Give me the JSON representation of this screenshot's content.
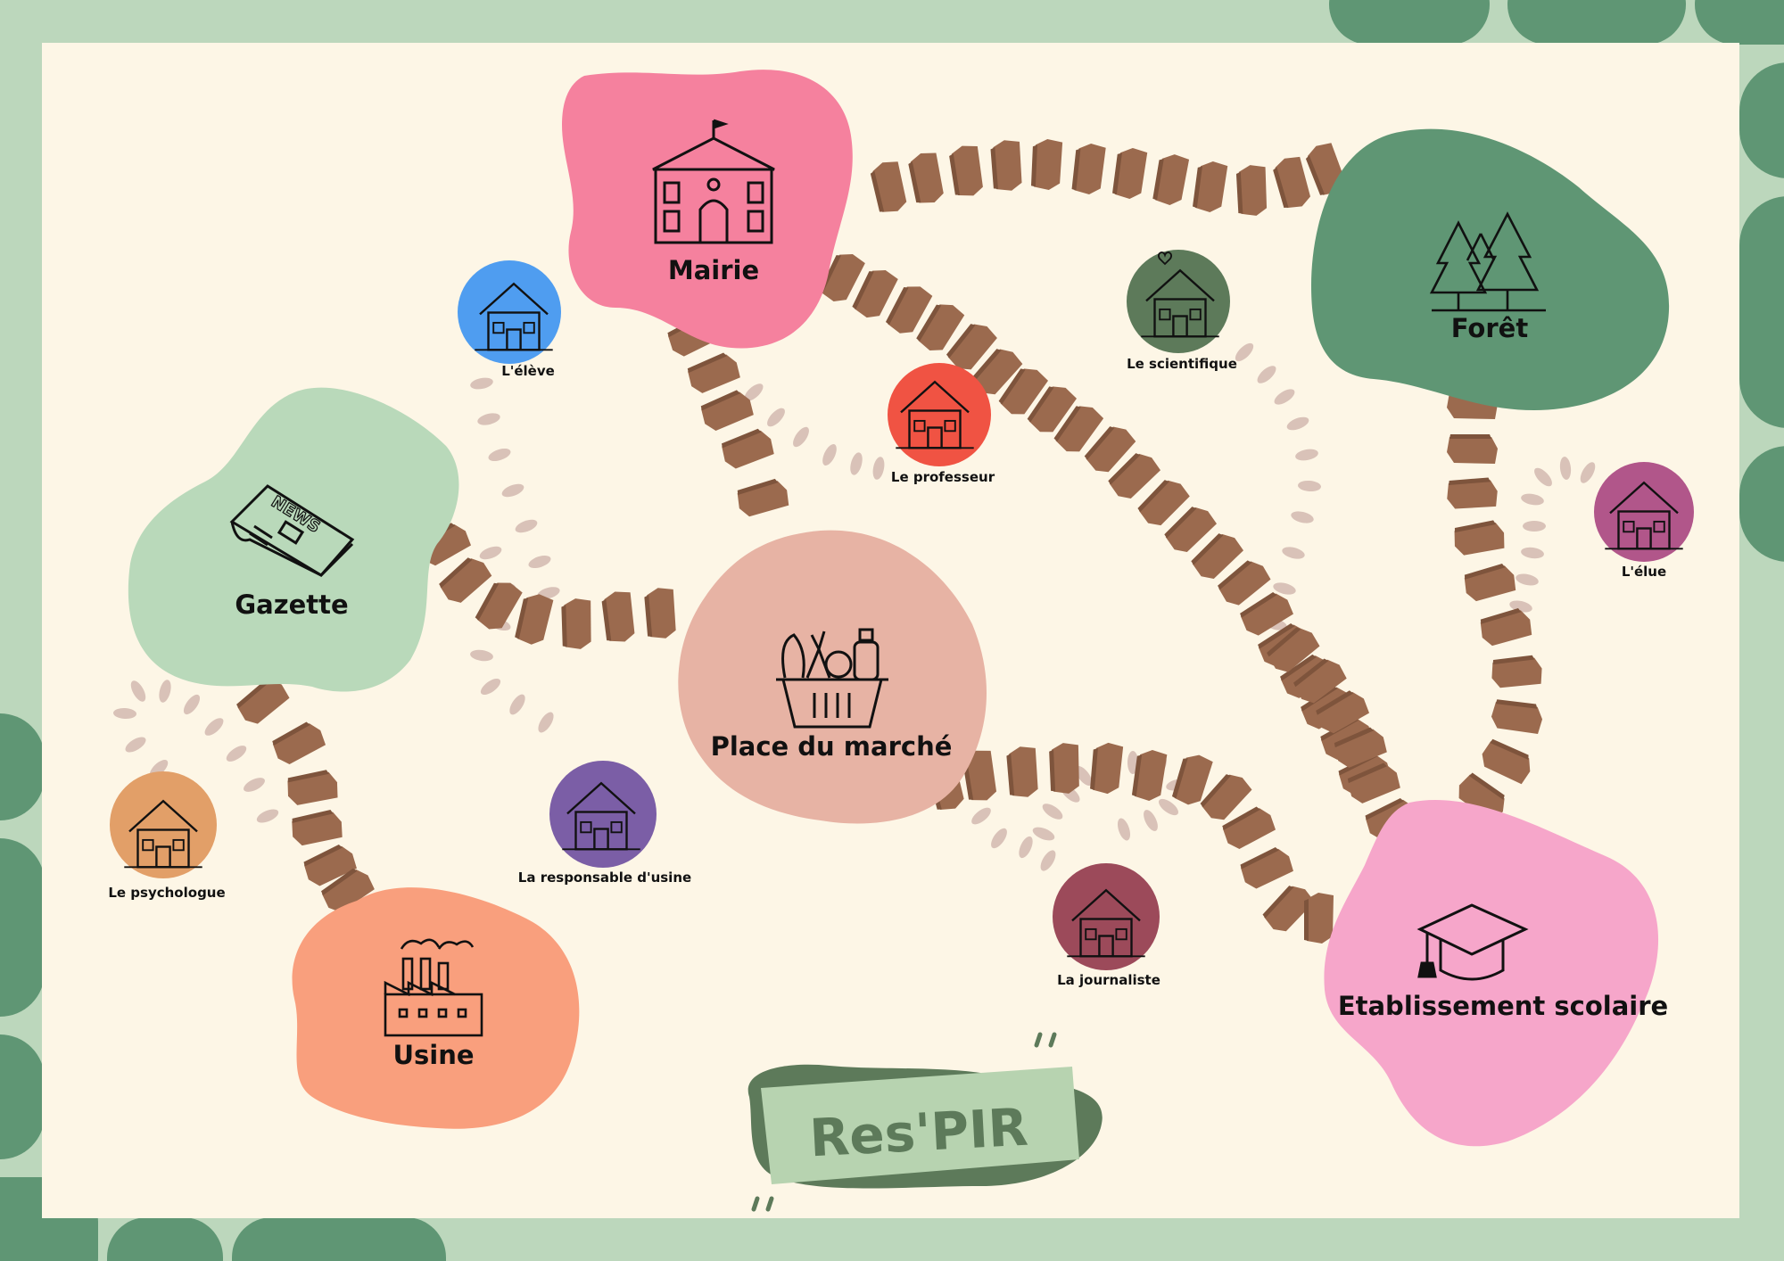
{
  "places": {
    "mairie": "Mairie",
    "gazette": "Gazette",
    "foret": "Forêt",
    "marche": "Place du marché",
    "usine": "Usine",
    "ecole": "Etablissement scolaire"
  },
  "homes": {
    "eleve": "L'élève",
    "scientifique": "Le scientifique",
    "professeur": "Le professeur",
    "elue": "L'élue",
    "psychologue": "Le psychologue",
    "responsable": "La responsable d'usine",
    "journaliste": "La journaliste"
  },
  "title": "Res'PIR",
  "colors": {
    "background": "#bcd7bc",
    "board": "#fdf6e6",
    "path_stone": "#9b6a4e",
    "path_dash": "#d9c2b8",
    "mairie": "#f5819e",
    "gazette": "#b9d9ba",
    "foret": "#5f9674",
    "marche": "#e7b3a4",
    "usine": "#f99f7d",
    "ecole": "#f6a6ca",
    "eleve": "#4f9df0",
    "scientifique": "#5d7a5a",
    "professeur": "#f05343",
    "elue": "#b1568a",
    "psychologue": "#e29f68",
    "responsable": "#7b5ea6",
    "journaliste": "#9c4a5a"
  },
  "icons": {
    "mairie": "town-hall-icon",
    "gazette": "newspaper-icon",
    "foret": "pine-trees-icon",
    "marche": "grocery-basket-icon",
    "usine": "factory-icon",
    "ecole": "graduation-cap-icon",
    "homes": "house-icon"
  }
}
